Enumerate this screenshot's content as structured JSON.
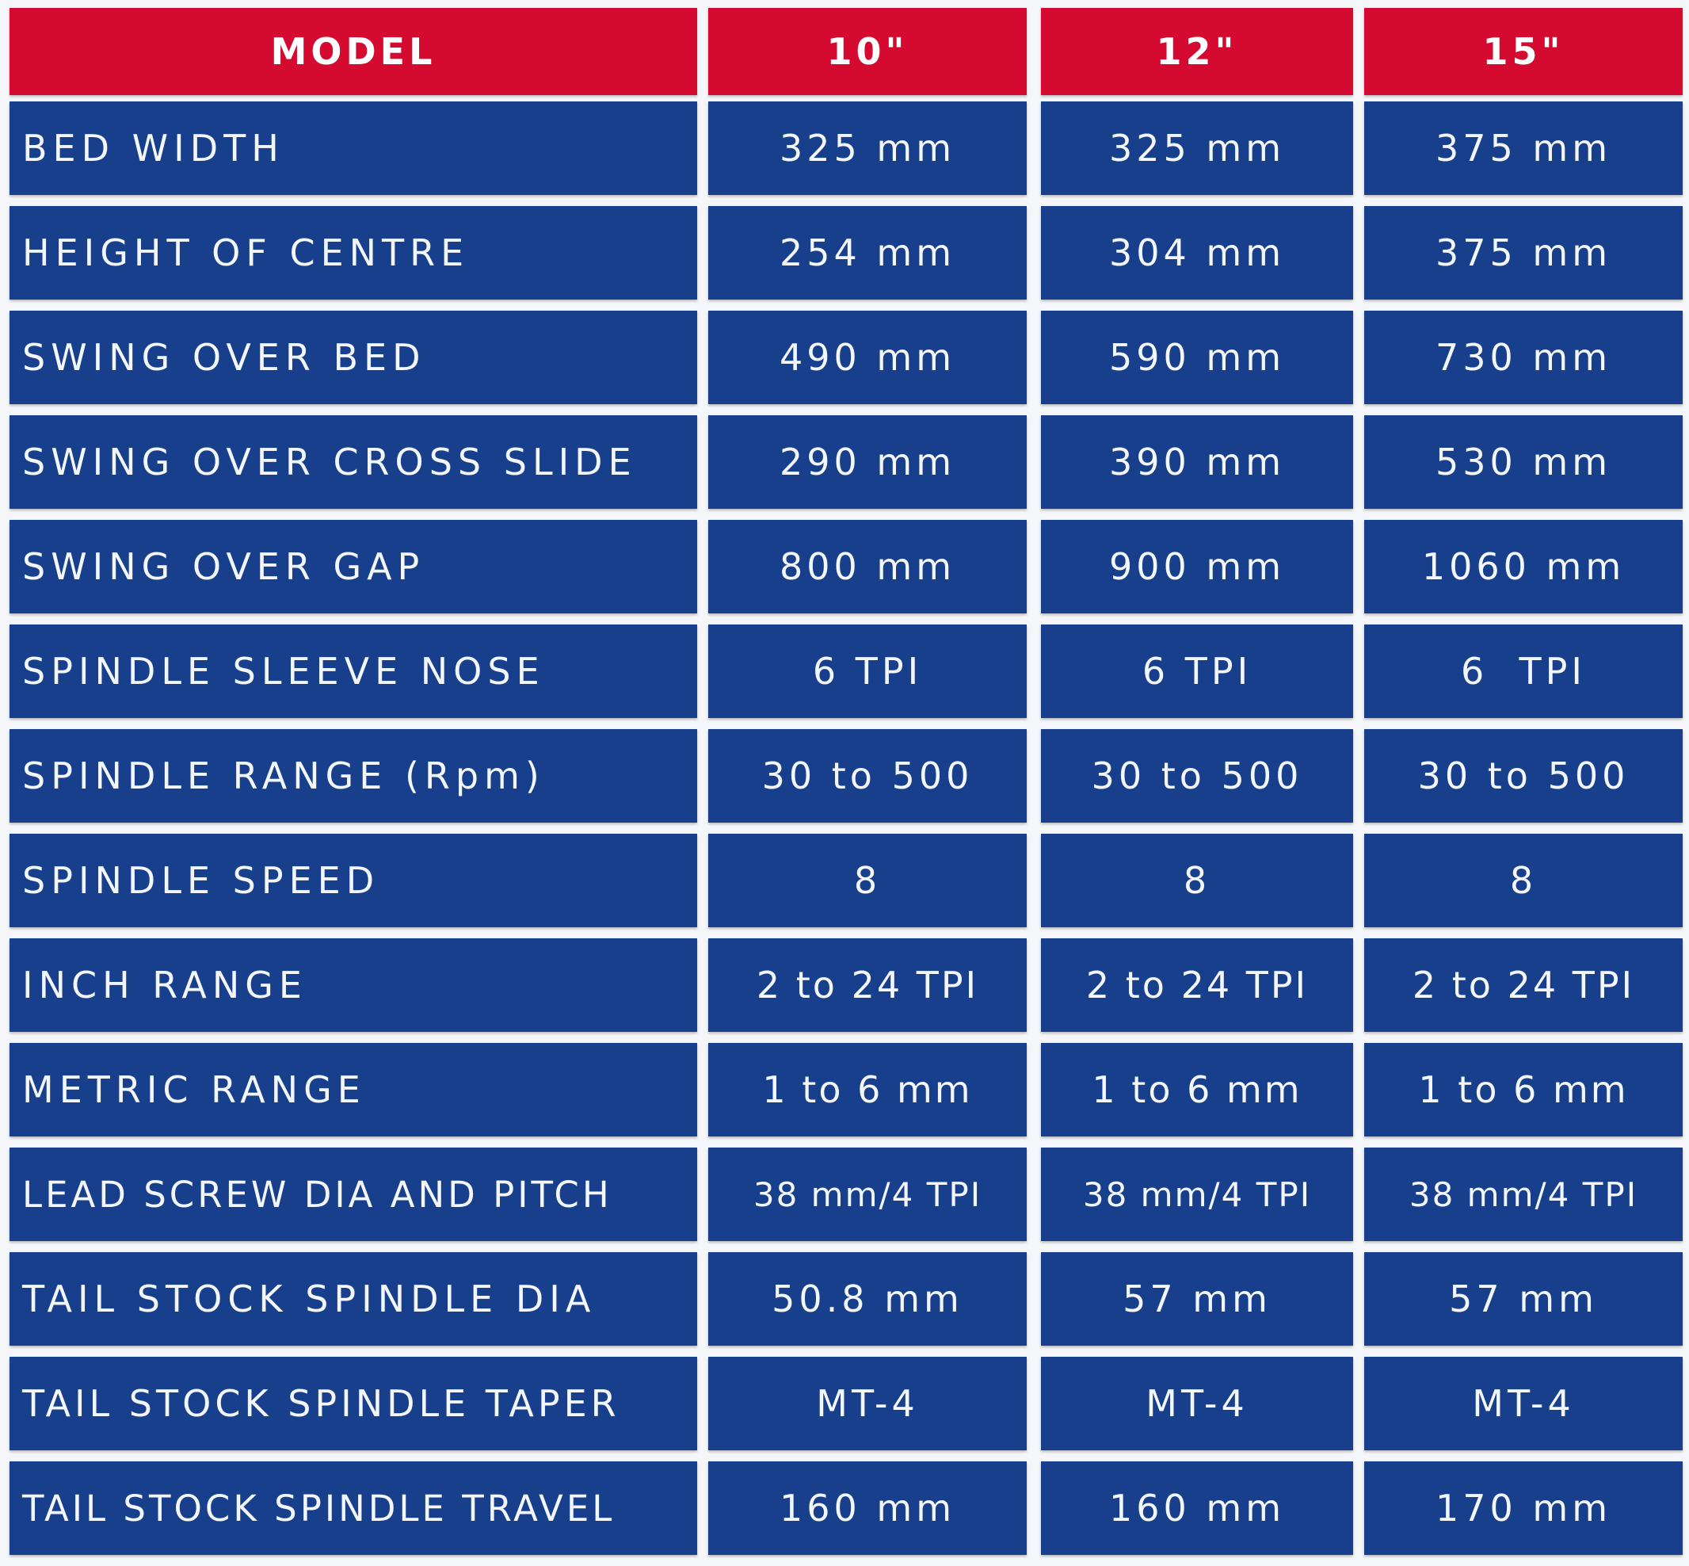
{
  "header": {
    "model_label": "MODEL",
    "models": [
      "10\"",
      "12\"",
      "15\""
    ]
  },
  "rows": [
    {
      "label": "BED WIDTH",
      "values": [
        "325 mm",
        "325 mm",
        "375 mm"
      ]
    },
    {
      "label": "HEIGHT OF CENTRE",
      "values": [
        "254 mm",
        "304 mm",
        "375 mm"
      ]
    },
    {
      "label": "SWING OVER BED",
      "values": [
        "490 mm",
        "590 mm",
        "730 mm"
      ]
    },
    {
      "label": "SWING OVER CROSS SLIDE",
      "values": [
        "290 mm",
        "390 mm",
        "530 mm"
      ]
    },
    {
      "label": "SWING OVER GAP",
      "values": [
        "800 mm",
        "900 mm",
        "1060 mm"
      ]
    },
    {
      "label": "SPINDLE SLEEVE NOSE",
      "values": [
        "6 TPI",
        "6 TPI",
        "6  TPI"
      ]
    },
    {
      "label": "SPINDLE RANGE (Rpm)",
      "values": [
        "30 to 500",
        "30 to 500",
        "30 to 500"
      ]
    },
    {
      "label": "SPINDLE SPEED",
      "values": [
        "8",
        "8",
        "8"
      ]
    },
    {
      "label": "INCH RANGE",
      "values": [
        "2 to 24 TPI",
        "2 to 24 TPI",
        "2 to 24 TPI"
      ]
    },
    {
      "label": "METRIC RANGE",
      "values": [
        "1 to 6 mm",
        "1 to 6 mm",
        "1 to 6 mm"
      ]
    },
    {
      "label": "LEAD SCREW DIA AND PITCH",
      "values": [
        "38 mm/4 TPI",
        "38 mm/4 TPI",
        "38 mm/4 TPI"
      ]
    },
    {
      "label": "TAIL STOCK SPINDLE DIA",
      "values": [
        "50.8 mm",
        "57 mm",
        "57 mm"
      ]
    },
    {
      "label": "TAIL STOCK SPINDLE TAPER",
      "values": [
        "MT-4",
        "MT-4",
        "MT-4"
      ]
    },
    {
      "label": "TAIL STOCK SPINDLE TRAVEL",
      "values": [
        "160 mm",
        "160 mm",
        "170 mm"
      ]
    }
  ],
  "colors": {
    "header_bg": "#d50a30",
    "body_bg": "#173f8b",
    "text": "#f3f6fb",
    "gap": "#f4f6fa"
  }
}
